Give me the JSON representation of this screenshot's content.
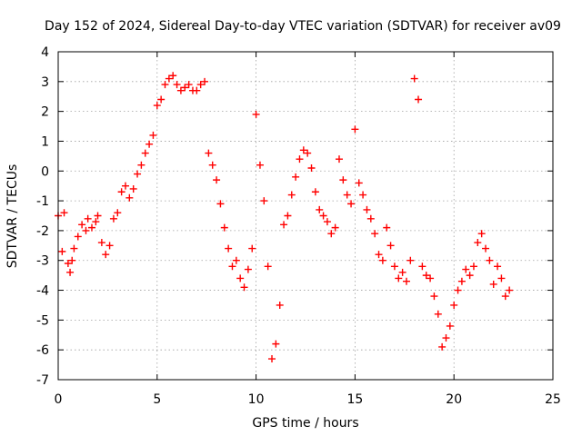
{
  "chart_data": {
    "type": "scatter",
    "title": "Day 152 of 2024, Sidereal Day-to-day VTEC variation (SDTVAR) for receiver av09",
    "xlabel": "GPS time / hours",
    "ylabel": "SDTVAR / TECUs",
    "xlim": [
      0,
      25
    ],
    "ylim": [
      -7,
      4
    ],
    "xticks": [
      0,
      5,
      10,
      15,
      20,
      25
    ],
    "yticks": [
      -7,
      -6,
      -5,
      -4,
      -3,
      -2,
      -1,
      0,
      1,
      2,
      3,
      4
    ],
    "grid": true,
    "marker": "plus",
    "colors": {
      "series": "#ff0000",
      "grid": "#a0a0a0",
      "axis": "#000000"
    },
    "series": [
      {
        "x": [
          0.0,
          0.2,
          0.3,
          0.5,
          0.6,
          0.7,
          0.8,
          1.0,
          1.2,
          1.4,
          1.5,
          1.7,
          1.9,
          2.0,
          2.2,
          2.4,
          2.6,
          2.8,
          3.0,
          3.2,
          3.4,
          3.6,
          3.8,
          4.0,
          4.2,
          4.4,
          4.6,
          4.8,
          5.0,
          5.2,
          5.4,
          5.6,
          5.8,
          6.0,
          6.2,
          6.4,
          6.6,
          6.8,
          7.0,
          7.2,
          7.4,
          7.6,
          7.8,
          8.0,
          8.2,
          8.4,
          8.6,
          8.8,
          9.0,
          9.2,
          9.4,
          9.6,
          9.8,
          10.0,
          10.2,
          10.4,
          10.6,
          10.8,
          11.0,
          11.2,
          11.4,
          11.6,
          11.8,
          12.0,
          12.2,
          12.4,
          12.6,
          12.8,
          13.0,
          13.2,
          13.4,
          13.6,
          13.8,
          14.0,
          14.2,
          14.4,
          14.6,
          14.8,
          15.0,
          15.2,
          15.4,
          15.6,
          15.8,
          16.0,
          16.2,
          16.4,
          16.6,
          16.8,
          17.0,
          17.2,
          17.4,
          17.6,
          17.8,
          18.0,
          18.2,
          18.4,
          18.6,
          18.8,
          19.0,
          19.2,
          19.4,
          19.6,
          19.8,
          20.0,
          20.2,
          20.4,
          20.6,
          20.8,
          21.0,
          21.2,
          21.4,
          21.6,
          21.8,
          22.0,
          22.2,
          22.4,
          22.6,
          22.8
        ],
        "y": [
          -1.5,
          -2.7,
          -1.4,
          -3.1,
          -3.4,
          -3.0,
          -2.6,
          -2.2,
          -1.8,
          -2.0,
          -1.6,
          -1.9,
          -1.7,
          -1.5,
          -2.4,
          -2.8,
          -2.5,
          -1.6,
          -1.4,
          -0.7,
          -0.5,
          -0.9,
          -0.6,
          -0.1,
          0.2,
          0.6,
          0.9,
          1.2,
          2.2,
          2.4,
          2.9,
          3.1,
          3.2,
          2.9,
          2.7,
          2.8,
          2.9,
          2.7,
          2.7,
          2.9,
          3.0,
          0.6,
          0.2,
          -0.3,
          -1.1,
          -1.9,
          -2.6,
          -3.2,
          -3.0,
          -3.6,
          -3.9,
          -3.3,
          -2.6,
          1.9,
          0.2,
          -1.0,
          -3.2,
          -6.3,
          -5.8,
          -4.5,
          -1.8,
          -1.5,
          -0.8,
          -0.2,
          0.4,
          0.7,
          0.6,
          0.1,
          -0.7,
          -1.3,
          -1.5,
          -1.7,
          -2.1,
          -1.9,
          0.4,
          -0.3,
          -0.8,
          -1.1,
          1.4,
          -0.4,
          -0.8,
          -1.3,
          -1.6,
          -2.1,
          -2.8,
          -3.0,
          -1.9,
          -2.5,
          -3.2,
          -3.6,
          -3.4,
          -3.7,
          -3.0,
          3.1,
          2.4,
          -3.2,
          -3.5,
          -3.6,
          -4.2,
          -4.8,
          -5.9,
          -5.6,
          -5.2,
          -4.5,
          -4.0,
          -3.7,
          -3.3,
          -3.5,
          -3.2,
          -2.4,
          -2.1,
          -2.6,
          -3.0,
          -3.8,
          -3.2,
          -3.6,
          -4.2,
          -4.0
        ]
      }
    ]
  }
}
